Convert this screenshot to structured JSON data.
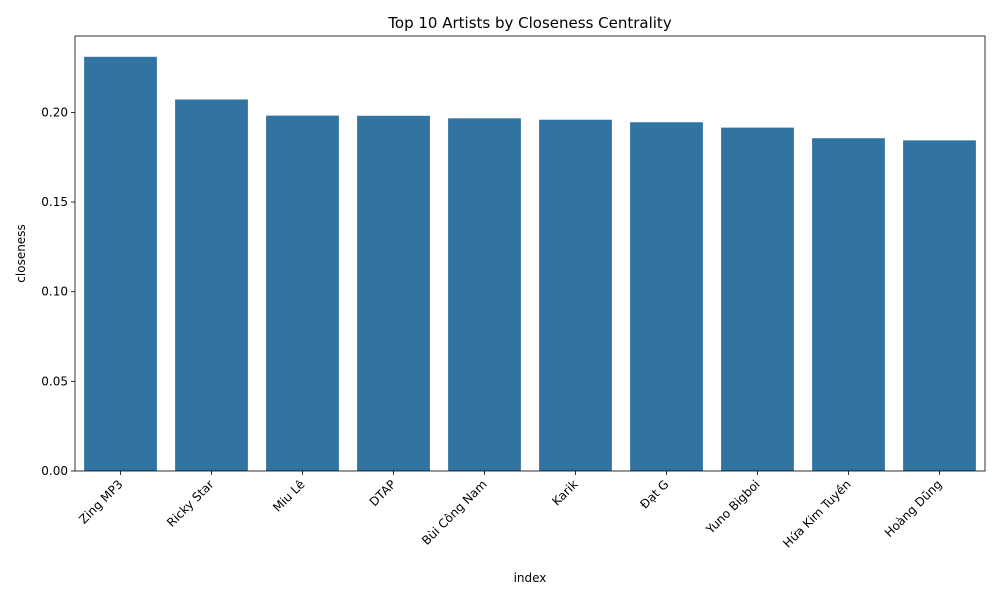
{
  "chart_data": {
    "type": "bar",
    "title": "Top 10 Artists by Closeness Centrality",
    "xlabel": "index",
    "ylabel": "closeness",
    "categories": [
      "Zing MP3",
      "Ricky Star",
      "Miu Lê",
      "DTAP",
      "Bùi Công Nam",
      "Karik",
      "Đạt G",
      "Yuno Bigboi",
      "Hứa Kim Tuyền",
      "Hoàng Dũng"
    ],
    "values": [
      0.231,
      0.2072,
      0.1982,
      0.1981,
      0.1967,
      0.1959,
      0.1945,
      0.1915,
      0.1856,
      0.1844
    ],
    "ylim": [
      0,
      0.2426
    ],
    "yticks": [
      0.0,
      0.05,
      0.1,
      0.15,
      0.2
    ],
    "ytick_labels": [
      "0.00",
      "0.05",
      "0.10",
      "0.15",
      "0.20"
    ],
    "bar_color": "#3274a1",
    "grid": false
  }
}
